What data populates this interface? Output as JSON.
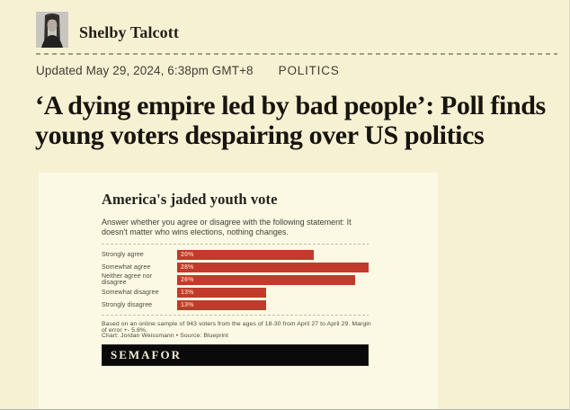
{
  "byline": {
    "author": "Shelby Talcott"
  },
  "meta": {
    "updated": "Updated May 29, 2024, 6:38pm GMT+8",
    "category": "POLITICS"
  },
  "headline": {
    "line1": "‘A dying empire led by bad people’: Poll finds",
    "line2": "young voters despairing over US politics"
  },
  "figure": {
    "title": "America's jaded youth vote",
    "subtitle": "Answer whether you agree or disagree with the following statement: It doesn't matter who wins elections, nothing changes.",
    "footnote": "Based on an online sample of 943 voters from the ages of 18-30 from April 27 to April 29. Margin of error +- 5.8%.",
    "credit": "Chart: Jordan Weissmann • Source: Blueprint",
    "logo": "SEMAFOR"
  },
  "chart_data": {
    "type": "bar",
    "orientation": "horizontal",
    "title": "America's jaded youth vote",
    "subtitle": "Answer whether you agree or disagree with the following statement: It doesn't matter who wins elections, nothing changes.",
    "categories": [
      "Strongly agree",
      "Somewhat agree",
      "Neither agree nor disagree",
      "Somewhat disagree",
      "Strongly disagree"
    ],
    "values": [
      20,
      28,
      26,
      13,
      13
    ],
    "value_labels": [
      "20%",
      "28%",
      "26%",
      "13%",
      "13%"
    ],
    "xlabel": "",
    "ylabel": "",
    "xlim": [
      0,
      28
    ],
    "grid": false,
    "legend": false,
    "bar_color": "#c13a2b",
    "value_label_color": "#efc2a2"
  },
  "colors": {
    "page_bg": "#f7f1d4",
    "card_bg": "#fbf9e3",
    "accent_red": "#c13a2b",
    "logo_bar_bg": "#0a0a0a",
    "logo_text": "#f4eed9"
  }
}
